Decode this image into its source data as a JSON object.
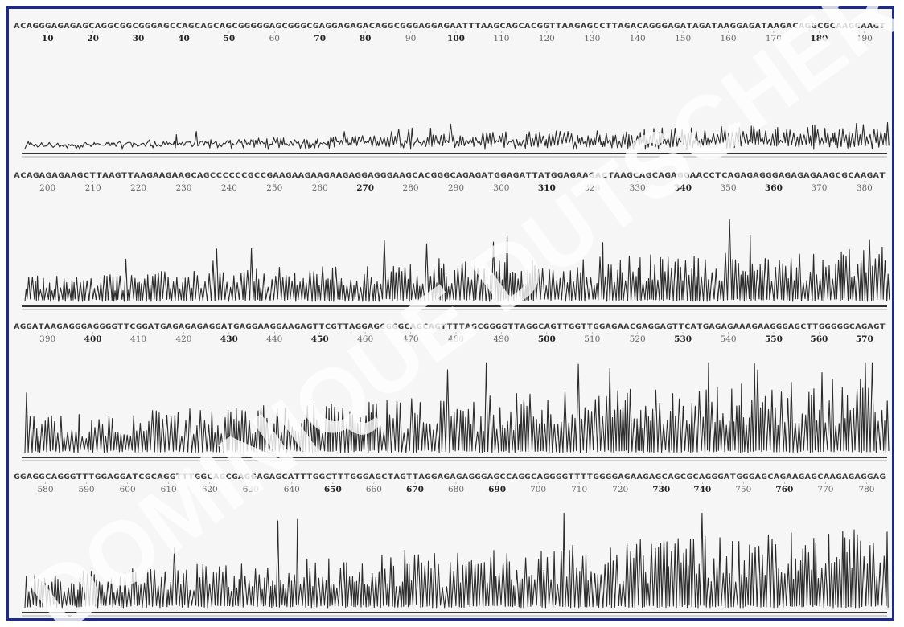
{
  "figure": {
    "border_color": "#1c2a8c",
    "trace_color": "#2b2b2b",
    "background": "#f6f6f6"
  },
  "watermark": {
    "text": "DOMINIQUE DUTSCHER",
    "color": "#ffffff",
    "opacity": 0.8
  },
  "chart_data": {
    "type": "line",
    "panels": [
      {
        "bases": "ACAGGGAGAGAGCAGGCGGCGGGAGCCAGCAGCAGCGGGGGAGCGGGCGAGGAGAGACAGGCGGGAGGAGAATTTAAGCAGCACGGTTAAGAGCCTTAGACAGGGAGATAGATAAGGAGATAAGACAGGCGCAAGGAAGT",
        "tick_labels": [
          "10",
          "20",
          "30",
          "40",
          "50",
          "60",
          "70",
          "80",
          "90",
          "100",
          "110",
          "120",
          "130",
          "140",
          "150",
          "160",
          "170",
          "180",
          "190"
        ],
        "bold_ticks": [
          "10",
          "20",
          "30",
          "40",
          "50",
          "70",
          "80",
          "100",
          "180"
        ],
        "peak_level": [
          0.1,
          0.55
        ],
        "signal_intensity": 0.55
      },
      {
        "bases": "ACAGAGAGAAGCTTAAGTTAAGAAGAAGCAGCCCCCCGCCGAAGAAGAAGAAGAGGAGGGAAGCACGGGCAGAGATGGAGATTATGGAGAAGACTAAGCAGCAGAGGAACCTCAGAGAGGGAGAGAGAAGCGCAAGAT",
        "tick_labels": [
          "200",
          "210",
          "220",
          "230",
          "240",
          "250",
          "260",
          "270",
          "280",
          "290",
          "300",
          "310",
          "320",
          "330",
          "340",
          "350",
          "360",
          "370",
          "380"
        ],
        "bold_ticks": [
          "270",
          "310",
          "340",
          "360"
        ],
        "peak_level": [
          0.35,
          0.75
        ],
        "signal_intensity": 0.8
      },
      {
        "bases": "AGGATAAGAGGGAGGGGTTCGGATGAGAGAGAGGATGAGGAAGGAAGAGTTCGTTAGGAGCGGGCAGCAGTTTTAGCGGGGTTAGGCAGTTGGTTGGAGAACGAGGAGTTCATGAGAGAAAGAAGGGAGCTTGGGGGCAGAGT",
        "tick_labels": [
          "390",
          "400",
          "410",
          "420",
          "430",
          "440",
          "450",
          "460",
          "470",
          "480",
          "490",
          "500",
          "510",
          "520",
          "530",
          "540",
          "550",
          "560",
          "570"
        ],
        "bold_ticks": [
          "400",
          "430",
          "450",
          "500",
          "530",
          "550",
          "560",
          "570"
        ],
        "peak_level": [
          0.4,
          0.85
        ],
        "signal_intensity": 1.0
      },
      {
        "bases": "GGAGGCAGGGTTTGGAGGATCGCAGGTTTGGCAGCGAGGAGAGCATTTGGCTTTGGGAGCTAGTTAGGAGAGAGGGAGCCAGGCAGGGGTTTTGGGGAGAAGAGCAGCGCAGGGATGGGAGCAGAAGAGCAAGAGAGGAG",
        "tick_labels": [
          "580",
          "590",
          "600",
          "610",
          "620",
          "630",
          "640",
          "650",
          "660",
          "670",
          "680",
          "690",
          "700",
          "710",
          "720",
          "730",
          "740",
          "750",
          "760",
          "770",
          "780"
        ],
        "bold_ticks": [
          "650",
          "670",
          "690",
          "730",
          "740",
          "760"
        ],
        "peak_level": [
          0.35,
          0.85
        ],
        "signal_intensity": 1.0
      }
    ]
  }
}
